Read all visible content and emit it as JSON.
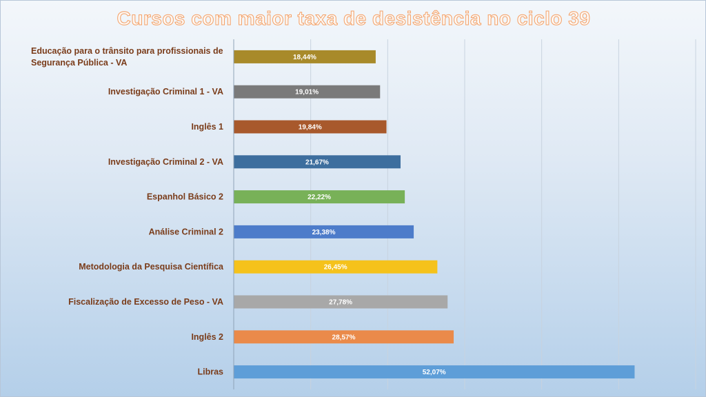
{
  "chart_data": {
    "type": "bar",
    "orientation": "horizontal",
    "title": "Cursos com maior taxa de desistência no ciclo 39",
    "categories": [
      [
        "Educação para o trânsito para profissionais de",
        "Segurança Pública - VA"
      ],
      [
        "Investigação Criminal 1 - VA"
      ],
      [
        "Inglês 1"
      ],
      [
        "Investigação Criminal 2 - VA"
      ],
      [
        "Espanhol Básico 2"
      ],
      [
        "Análise Criminal 2"
      ],
      [
        "Metodologia da Pesquisa Científica"
      ],
      [
        "Fiscalização de Excesso de Peso - VA"
      ],
      [
        "Inglês 2"
      ],
      [
        "Libras"
      ]
    ],
    "values": [
      18.44,
      19.01,
      19.84,
      21.67,
      22.22,
      23.38,
      26.45,
      27.78,
      28.57,
      52.07
    ],
    "value_labels": [
      "18,44%",
      "19,01%",
      "19,84%",
      "21,67%",
      "22,22%",
      "23,38%",
      "26,45%",
      "27,78%",
      "28,57%",
      "52,07%"
    ],
    "colors": [
      "#a88a2a",
      "#7a7a7a",
      "#a8592c",
      "#3d6e9e",
      "#78b158",
      "#4d7cca",
      "#f5c21b",
      "#a8a8a8",
      "#ea8a4a",
      "#5e9ed8"
    ],
    "xlim": [
      0,
      60
    ],
    "grid": true,
    "xlabel": "",
    "ylabel": ""
  }
}
